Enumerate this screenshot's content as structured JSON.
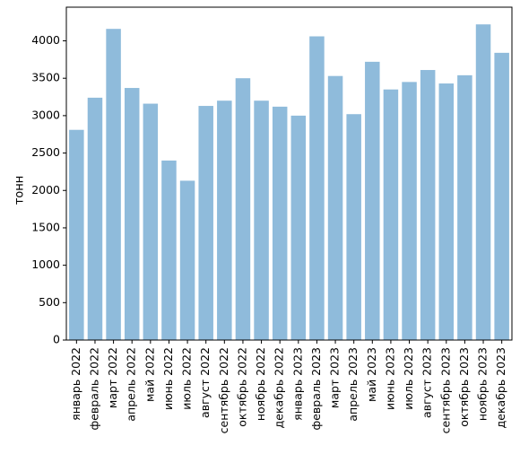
{
  "chart_data": {
    "type": "bar",
    "title": "",
    "xlabel": "",
    "ylabel": "тонн",
    "ylim": [
      0,
      4450
    ],
    "yticks": [
      0,
      500,
      1000,
      1500,
      2000,
      2500,
      3000,
      3500,
      4000
    ],
    "grid": false,
    "bar_color": "#8fbbdb",
    "categories": [
      "январь 2022",
      "февраль 2022",
      "март 2022",
      "апрель 2022",
      "май 2022",
      "июнь 2022",
      "июль 2022",
      "август 2022",
      "сентябрь 2022",
      "октябрь 2022",
      "ноябрь 2022",
      "декабрь 2022",
      "январь 2023",
      "февраль 2023",
      "март 2023",
      "апрель 2023",
      "май 2023",
      "июнь 2023",
      "июль 2023",
      "август 2023",
      "сентябрь 2023",
      "октябрь 2023",
      "ноябрь 2023",
      "декабрь 2023"
    ],
    "values": [
      2810,
      3240,
      4160,
      3370,
      3160,
      2400,
      2130,
      3130,
      3200,
      3500,
      3200,
      3120,
      3000,
      4060,
      3530,
      3020,
      3720,
      3350,
      3450,
      3610,
      3430,
      3540,
      4220,
      3840
    ]
  }
}
